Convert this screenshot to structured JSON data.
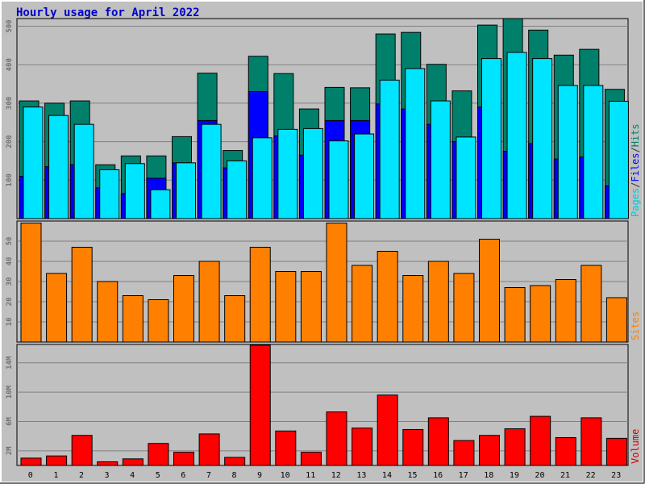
{
  "chart_data": [
    {
      "type": "bar",
      "title": "Hourly usage for April 2022",
      "categories": [
        "0",
        "1",
        "2",
        "3",
        "4",
        "5",
        "6",
        "7",
        "8",
        "9",
        "10",
        "11",
        "12",
        "13",
        "14",
        "15",
        "16",
        "17",
        "18",
        "19",
        "20",
        "21",
        "22",
        "23"
      ],
      "ylim": [
        0,
        520
      ],
      "yticks": [
        "100",
        "200",
        "300",
        "400",
        "500"
      ],
      "ytick_values": [
        100,
        200,
        300,
        400,
        500
      ],
      "legend": [
        {
          "text": "Pages",
          "color": "#00c8e0"
        },
        {
          "text": "/",
          "color": "#333333"
        },
        {
          "text": "Files",
          "color": "#0000ff"
        },
        {
          "text": "/",
          "color": "#333333"
        },
        {
          "text": "Hits",
          "color": "#00806b"
        }
      ],
      "series": [
        {
          "name": "Hits",
          "color": "#00806b",
          "values": [
            306,
            300,
            306,
            140,
            163,
            163,
            213,
            378,
            177,
            422,
            377,
            285,
            341,
            340,
            480,
            484,
            401,
            332,
            503,
            520,
            490,
            425,
            440,
            336
          ]
        },
        {
          "name": "Files",
          "color": "#0000ff",
          "values": [
            110,
            135,
            140,
            80,
            65,
            105,
            145,
            255,
            132,
            330,
            215,
            165,
            255,
            255,
            298,
            285,
            245,
            200,
            290,
            175,
            195,
            155,
            160,
            85
          ]
        },
        {
          "name": "Pages",
          "color": "#00e5ff",
          "values": [
            290,
            268,
            245,
            127,
            143,
            75,
            145,
            245,
            150,
            210,
            232,
            234,
            202,
            220,
            360,
            390,
            306,
            212,
            416,
            432,
            416,
            346,
            346,
            305
          ]
        }
      ]
    },
    {
      "type": "bar",
      "categories": [
        "0",
        "1",
        "2",
        "3",
        "4",
        "5",
        "6",
        "7",
        "8",
        "9",
        "10",
        "11",
        "12",
        "13",
        "14",
        "15",
        "16",
        "17",
        "18",
        "19",
        "20",
        "21",
        "22",
        "23"
      ],
      "ylim": [
        0,
        60
      ],
      "yticks": [
        "10",
        "20",
        "30",
        "40",
        "50"
      ],
      "ytick_values": [
        10,
        20,
        30,
        40,
        50
      ],
      "legend": [
        {
          "text": "Sites",
          "color": "#ff8000"
        }
      ],
      "series": [
        {
          "name": "Sites",
          "color": "#ff8000",
          "values": [
            59,
            34,
            47,
            30,
            23,
            21,
            33,
            40,
            23,
            47,
            35,
            35,
            59,
            38,
            45,
            33,
            40,
            34,
            51,
            27,
            28,
            31,
            38,
            22
          ]
        }
      ]
    },
    {
      "type": "bar",
      "categories": [
        "0",
        "1",
        "2",
        "3",
        "4",
        "5",
        "6",
        "7",
        "8",
        "9",
        "10",
        "11",
        "12",
        "13",
        "14",
        "15",
        "16",
        "17",
        "18",
        "19",
        "20",
        "21",
        "22",
        "23"
      ],
      "ylim": [
        0,
        16.5
      ],
      "yticks": [
        "2M",
        "6M",
        "10M",
        "14M"
      ],
      "ytick_values": [
        2,
        6,
        10,
        14
      ],
      "legend": [
        {
          "text": "Volume",
          "color": "#cc0000"
        }
      ],
      "series": [
        {
          "name": "Volume",
          "color": "#ff0000",
          "values": [
            1.0,
            1.3,
            4.1,
            0.5,
            0.9,
            3.0,
            1.8,
            4.3,
            1.1,
            16.4,
            4.7,
            1.8,
            7.3,
            5.1,
            9.6,
            4.9,
            6.5,
            3.4,
            4.1,
            5.0,
            6.7,
            3.8,
            6.5,
            3.7
          ]
        }
      ]
    }
  ]
}
